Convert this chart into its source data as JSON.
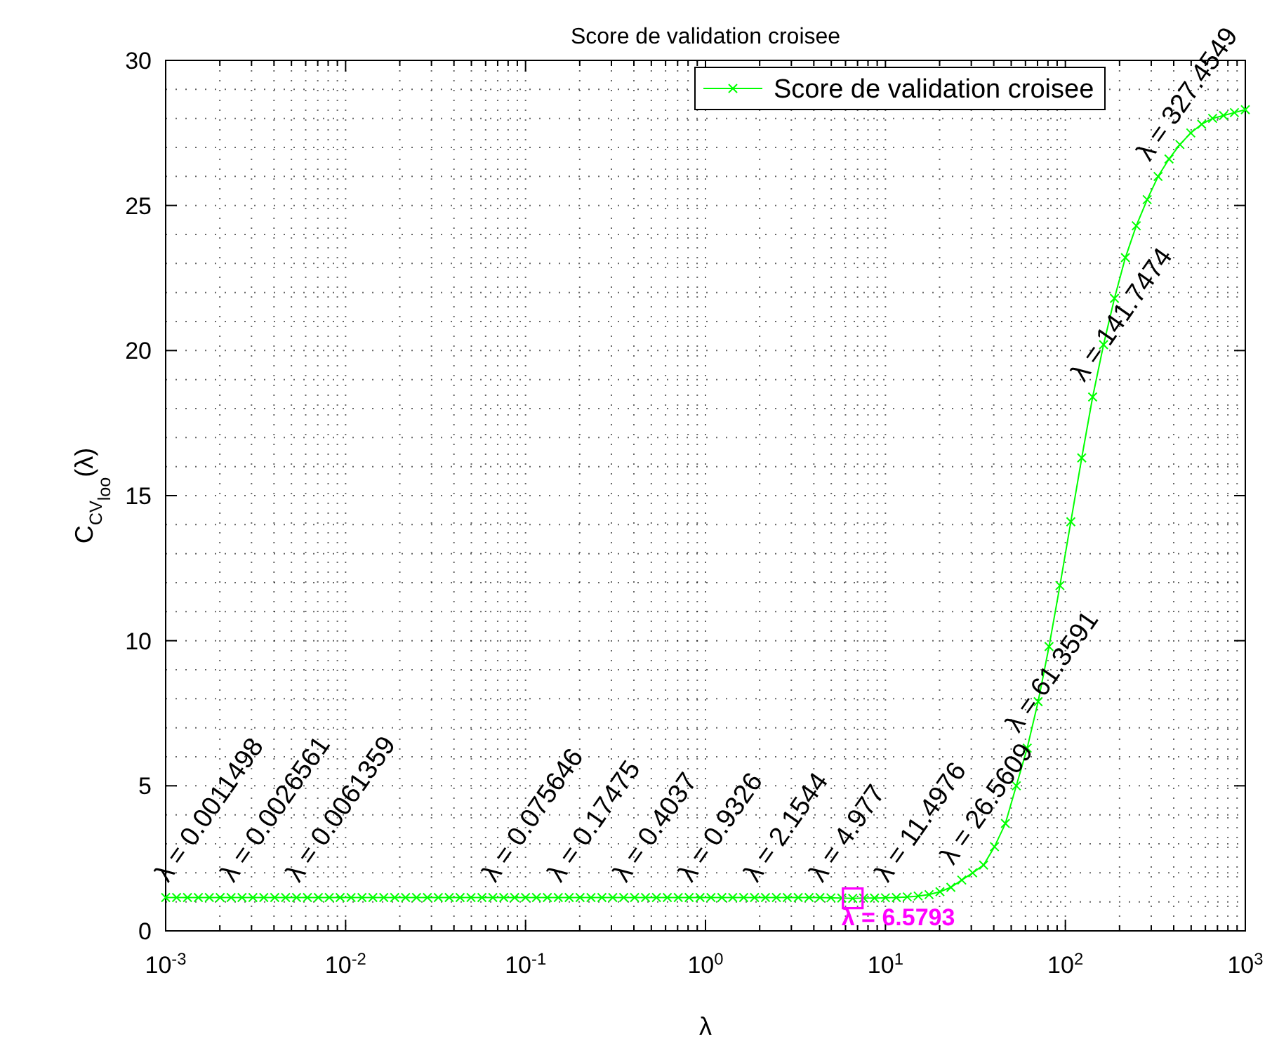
{
  "chart_data": {
    "type": "line",
    "title": "Score de validation croisee",
    "xlabel": "λ",
    "ylabel": "C$_{CV}$$_{loo}$(λ)",
    "log": "x",
    "grid": true,
    "legend": "top right",
    "marker": "cross",
    "line_style": "solid",
    "xlim": [
      0.001,
      1000
    ],
    "xticks": [
      {
        "value": 0.001,
        "label": "10$^{-3}$"
      },
      {
        "value": 0.01,
        "label": "10$^{-2}$"
      },
      {
        "value": 0.1,
        "label": "10$^{-1}$"
      },
      {
        "value": 1,
        "label": "10$^{0}$"
      },
      {
        "value": 10,
        "label": "10$^{1}$"
      },
      {
        "value": 100,
        "label": "10$^{2}$"
      },
      {
        "value": 1000,
        "label": "10$^{3}$"
      }
    ],
    "ylim": [
      0,
      30
    ],
    "yticks": [
      0,
      5,
      10,
      15,
      20,
      25,
      30
    ],
    "series": [
      {
        "name": "Score de validation croisee",
        "color": "#00ff00",
        "x": [
          0.001,
          0.0011498,
          0.0013219,
          0.0015199,
          0.0017475,
          0.0020092,
          0.0023101,
          0.0026561,
          0.0030539,
          0.0035112,
          0.004037,
          0.0046416,
          0.0053367,
          0.0061359,
          0.0070548,
          0.0081113,
          0.009326,
          0.010723,
          0.012328,
          0.014175,
          0.016298,
          0.018738,
          0.021544,
          0.024771,
          0.02848,
          0.032745,
          0.037649,
          0.043288,
          0.04977,
          0.057224,
          0.065793,
          0.075646,
          0.086975,
          0.1,
          0.11498,
          0.13219,
          0.15199,
          0.17475,
          0.20092,
          0.23101,
          0.26561,
          0.30539,
          0.35112,
          0.4037,
          0.46416,
          0.53367,
          0.61359,
          0.70548,
          0.81113,
          0.9326,
          1.0723,
          1.2328,
          1.4175,
          1.6298,
          1.8738,
          2.1544,
          2.4771,
          2.848,
          3.2745,
          3.7649,
          4.3288,
          4.977,
          5.7224,
          6.5793,
          7.5646,
          8.6975,
          10,
          11.4976,
          13.219,
          15.199,
          17.475,
          20.092,
          23.101,
          26.5609,
          30.539,
          35.112,
          40.37,
          46.416,
          53.367,
          61.3591,
          70.548,
          81.113,
          93.26,
          107.23,
          123.28,
          141.7474,
          162.98,
          187.38,
          215.44,
          247.71,
          284.8,
          327.4549,
          376.49,
          432.88,
          497.7,
          572.24,
          657.93,
          756.46,
          869.75,
          1000
        ],
        "values": [
          1.15,
          1.15,
          1.15,
          1.15,
          1.15,
          1.15,
          1.15,
          1.15,
          1.15,
          1.15,
          1.15,
          1.15,
          1.15,
          1.15,
          1.15,
          1.15,
          1.15,
          1.15,
          1.15,
          1.15,
          1.15,
          1.15,
          1.15,
          1.15,
          1.15,
          1.15,
          1.15,
          1.15,
          1.15,
          1.15,
          1.15,
          1.15,
          1.15,
          1.15,
          1.15,
          1.15,
          1.15,
          1.15,
          1.15,
          1.15,
          1.15,
          1.15,
          1.15,
          1.15,
          1.15,
          1.15,
          1.15,
          1.15,
          1.15,
          1.15,
          1.15,
          1.15,
          1.15,
          1.15,
          1.15,
          1.15,
          1.15,
          1.15,
          1.15,
          1.15,
          1.15,
          1.14,
          1.13,
          1.12,
          1.13,
          1.13,
          1.14,
          1.15,
          1.17,
          1.2,
          1.25,
          1.35,
          1.5,
          1.75,
          2.0,
          2.27,
          2.9,
          3.7,
          5.0,
          6.3,
          7.9,
          9.8,
          11.9,
          14.1,
          16.3,
          18.4,
          20.2,
          21.8,
          23.2,
          24.3,
          25.2,
          26.0,
          26.6,
          27.1,
          27.5,
          27.8,
          28.0,
          28.1,
          28.2,
          28.3
        ]
      },
      {
        "type": "scatter",
        "name": "λ = 6.5793",
        "color": "#ff00ff",
        "marker": "square",
        "x": [
          6.5793
        ],
        "values": [
          1.12
        ]
      }
    ],
    "annotations": [
      {
        "text": "λ = 0.0011498",
        "x": 0.0011498,
        "y": 1.15
      },
      {
        "text": "λ = 0.0026561",
        "x": 0.0026561,
        "y": 1.15
      },
      {
        "text": "λ = 0.0061359",
        "x": 0.0061359,
        "y": 1.15
      },
      {
        "text": "λ = 0.075646",
        "x": 0.075646,
        "y": 1.15
      },
      {
        "text": "λ = 0.17475",
        "x": 0.17475,
        "y": 1.15
      },
      {
        "text": "λ = 0.4037",
        "x": 0.4037,
        "y": 1.15
      },
      {
        "text": "λ = 0.9326",
        "x": 0.9326,
        "y": 1.15
      },
      {
        "text": "λ = 2.1544",
        "x": 2.1544,
        "y": 1.15
      },
      {
        "text": "λ = 4.977",
        "x": 4.977,
        "y": 1.15
      },
      {
        "text": "λ = 11.4976",
        "x": 11.4976,
        "y": 1.15
      },
      {
        "text": "λ = 26.5609",
        "x": 26.5609,
        "y": 1.75
      },
      {
        "text": "λ = 61.3591",
        "x": 61.3591,
        "y": 6.3
      },
      {
        "text": "λ = 141.7474",
        "x": 141.7474,
        "y": 18.4
      },
      {
        "text": "λ = 327.4549",
        "x": 327.4549,
        "y": 26.0
      }
    ]
  }
}
